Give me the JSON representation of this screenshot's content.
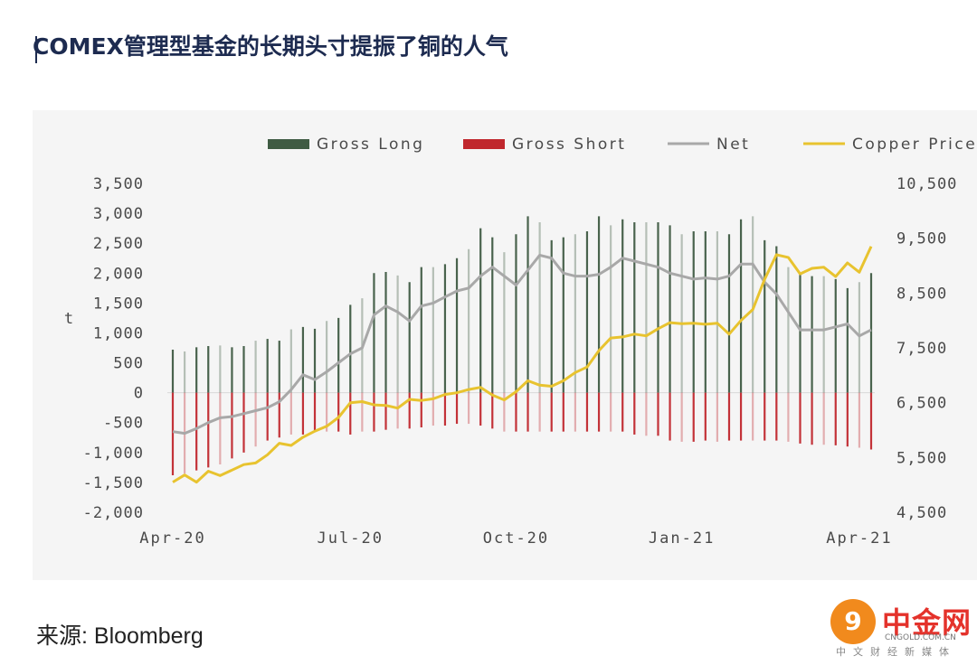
{
  "page": {
    "title": "COMEX管理型基金的长期头寸提振了铜的人气",
    "source": "来源: Bloomberg"
  },
  "watermark": {
    "logo_glyph": "9",
    "name": "中金网",
    "url": "CNGOLD.COM.CN",
    "subtitle": "中文财经新媒体"
  },
  "chart_data": {
    "type": "bar",
    "left_axis": {
      "label": "t",
      "ylim": [
        -2000,
        3500
      ],
      "ticks": [
        3500,
        3000,
        2500,
        2000,
        1500,
        1000,
        500,
        0,
        -500,
        -1000,
        -1500,
        -2000
      ],
      "tick_labels": [
        "3,500",
        "3,000",
        "2,500",
        "2,000",
        "1,500",
        "1,000",
        "500",
        "0",
        "-500",
        "-1,000",
        "-1,500",
        "-2,000"
      ]
    },
    "right_axis": {
      "ylim": [
        4500,
        10500
      ],
      "ticks": [
        10500,
        9500,
        8500,
        7500,
        6500,
        5500,
        4500
      ],
      "tick_labels": [
        "10,500",
        "9,500",
        "8,500",
        "7,500",
        "6,500",
        "5,500",
        "4,500"
      ]
    },
    "x_tick_labels": [
      "Apr-20",
      "Jul-20",
      "Oct-20",
      "Jan-21",
      "Apr-21"
    ],
    "x_tick_positions": [
      0,
      15,
      29,
      43,
      58
    ],
    "legend": {
      "position": "top",
      "entries": [
        {
          "name": "Gross Long",
          "color": "#3f5b43",
          "kind": "bar"
        },
        {
          "name": "Gross Short",
          "color": "#c0272d",
          "kind": "bar"
        },
        {
          "name": "Net",
          "color": "#a8a8a8",
          "kind": "line"
        },
        {
          "name": "Copper Price",
          "color": "#e8c32f",
          "kind": "line"
        }
      ]
    },
    "series": [
      {
        "name": "Gross Long",
        "axis": "left",
        "values": [
          720,
          690,
          760,
          780,
          790,
          760,
          780,
          870,
          900,
          870,
          1060,
          1100,
          1070,
          1200,
          1250,
          1470,
          1580,
          2000,
          2020,
          1960,
          1850,
          2100,
          2100,
          2150,
          2250,
          2400,
          2750,
          2600,
          2350,
          2650,
          2950,
          2850,
          2550,
          2600,
          2650,
          2700,
          2950,
          2800,
          2900,
          2850,
          2850,
          2850,
          2800,
          2650,
          2700,
          2700,
          2700,
          2650,
          2900,
          2950,
          2550,
          2450,
          2100,
          2000,
          1950,
          1950,
          1900,
          1750,
          1850,
          2000
        ]
      },
      {
        "name": "Gross Short",
        "axis": "left",
        "values": [
          -1380,
          -1350,
          -1300,
          -1250,
          -1200,
          -1100,
          -1000,
          -900,
          -800,
          -750,
          -700,
          -700,
          -650,
          -650,
          -650,
          -700,
          -650,
          -650,
          -620,
          -600,
          -600,
          -580,
          -550,
          -550,
          -520,
          -520,
          -550,
          -600,
          -650,
          -650,
          -650,
          -650,
          -650,
          -650,
          -650,
          -650,
          -650,
          -650,
          -650,
          -700,
          -720,
          -720,
          -800,
          -820,
          -820,
          -800,
          -820,
          -800,
          -800,
          -800,
          -800,
          -800,
          -820,
          -850,
          -870,
          -870,
          -880,
          -900,
          -920,
          -950
        ]
      },
      {
        "name": "Net",
        "axis": "left",
        "values": [
          -650,
          -680,
          -600,
          -500,
          -420,
          -400,
          -350,
          -300,
          -250,
          -150,
          50,
          300,
          220,
          350,
          500,
          650,
          750,
          1300,
          1450,
          1350,
          1200,
          1450,
          1500,
          1600,
          1700,
          1750,
          1950,
          2100,
          1950,
          1800,
          2050,
          2300,
          2250,
          2000,
          1950,
          1950,
          1980,
          2100,
          2250,
          2200,
          2150,
          2100,
          2000,
          1950,
          1900,
          1920,
          1900,
          1950,
          2150,
          2150,
          1850,
          1650,
          1350,
          1050,
          1050,
          1050,
          1100,
          1150,
          950,
          1050
        ]
      },
      {
        "name": "Copper Price",
        "axis": "right",
        "values": [
          5050,
          5180,
          5050,
          5250,
          5170,
          5270,
          5370,
          5400,
          5550,
          5760,
          5720,
          5870,
          5980,
          6070,
          6230,
          6500,
          6520,
          6460,
          6450,
          6400,
          6560,
          6540,
          6570,
          6650,
          6680,
          6740,
          6780,
          6640,
          6550,
          6700,
          6900,
          6820,
          6800,
          6900,
          7050,
          7150,
          7450,
          7680,
          7700,
          7750,
          7720,
          7850,
          7960,
          7940,
          7950,
          7930,
          7950,
          7750,
          8000,
          8200,
          8750,
          9200,
          9150,
          8850,
          8950,
          8970,
          8800,
          9050,
          8880,
          9350
        ]
      }
    ]
  }
}
